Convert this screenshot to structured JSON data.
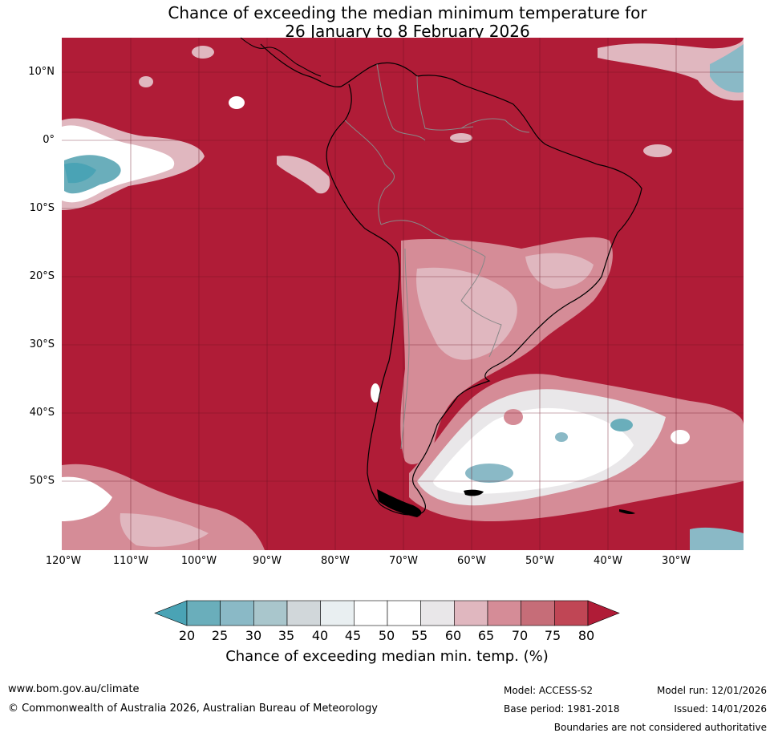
{
  "title": {
    "line1": "Chance of exceeding the median minimum temperature for",
    "line2": "26 January to 8 February 2026"
  },
  "map": {
    "lat_labels": [
      "10°N",
      "0°",
      "10°S",
      "20°S",
      "30°S",
      "40°S",
      "50°S"
    ],
    "lon_labels": [
      "120°W",
      "110°W",
      "100°W",
      "90°W",
      "80°W",
      "70°W",
      "60°W",
      "50°W",
      "40°W",
      "30°W"
    ],
    "background_category": "above 80%"
  },
  "colorbar": {
    "ticks": [
      "20",
      "25",
      "30",
      "35",
      "40",
      "45",
      "50",
      "55",
      "60",
      "65",
      "70",
      "75",
      "80"
    ],
    "colors": [
      "#4aa3b5",
      "#6aaebb",
      "#8ab9c6",
      "#a9c6cc",
      "#d1d7da",
      "#e9eff1",
      "#ffffff",
      "#ffffff",
      "#e9e7e9",
      "#e0b7bf",
      "#d58c97",
      "#c66d78",
      "#c04655",
      "#b01c37"
    ],
    "title": "Chance of exceeding median min. temp. (%)"
  },
  "footer": {
    "website": "www.bom.gov.au/climate",
    "copyright": "© Commonwealth of Australia 2026, Australian Bureau of Meteorology",
    "model": "Model: ACCESS-S2",
    "base_period": "Base period: 1981-2018",
    "model_run": "Model run: 12/01/2026",
    "issued": "Issued: 14/01/2026",
    "disclaimer": "Boundaries are not considered authoritative"
  }
}
